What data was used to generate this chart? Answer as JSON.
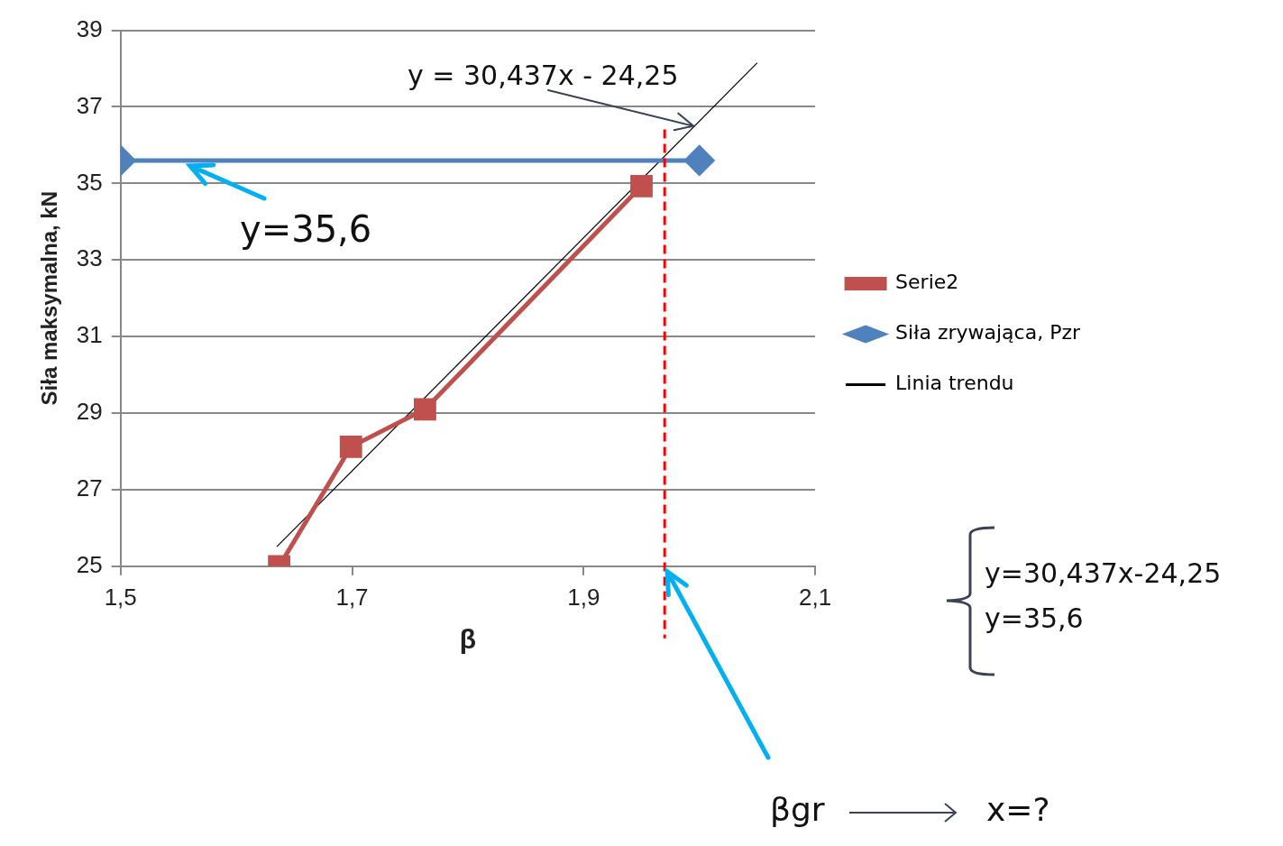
{
  "chart_data": {
    "type": "line",
    "xlabel": "β",
    "ylabel": "Siła maksymalna, kN",
    "xlim": [
      1.5,
      2.1
    ],
    "xticks": [
      {
        "value": 1.5,
        "label": "1,5"
      },
      {
        "value": 1.7,
        "label": "1,7"
      },
      {
        "value": 1.9,
        "label": "1,9"
      },
      {
        "value": 2.1,
        "label": "2,1"
      }
    ],
    "ylim": [
      25,
      39
    ],
    "yticks": [
      25,
      27,
      29,
      31,
      33,
      35,
      37,
      39
    ],
    "grid": "y",
    "legend": "right",
    "series": [
      {
        "name": "Serie2",
        "color": "#c0504d",
        "marker": "square",
        "x": [
          1.637,
          1.699,
          1.763,
          1.95
        ],
        "values": [
          25.0,
          28.12,
          29.1,
          34.93
        ]
      },
      {
        "name": "Siła zrywająca, Pzr",
        "color": "#4f81bd",
        "marker": "diamond",
        "x": [
          1.5,
          2.0
        ],
        "values": [
          35.6,
          35.6
        ]
      },
      {
        "name": "Linia trendu",
        "color": "#000000",
        "marker": "none",
        "x": [
          1.635,
          2.05
        ],
        "values": [
          25.51,
          38.15
        ]
      }
    ],
    "ref_lines": [
      {
        "axis": "x",
        "value": 1.97,
        "color": "#ff0000",
        "line_style": "dashed"
      }
    ],
    "annotations": [
      {
        "text": "y = 30,437x - 24,25",
        "x": 1.995,
        "y": 36.5
      },
      {
        "text": "y=35,6",
        "x": 1.56,
        "y": 35.6
      },
      "y=30,437x-24,25",
      "y=35,6",
      "βgr",
      "x=?"
    ]
  }
}
